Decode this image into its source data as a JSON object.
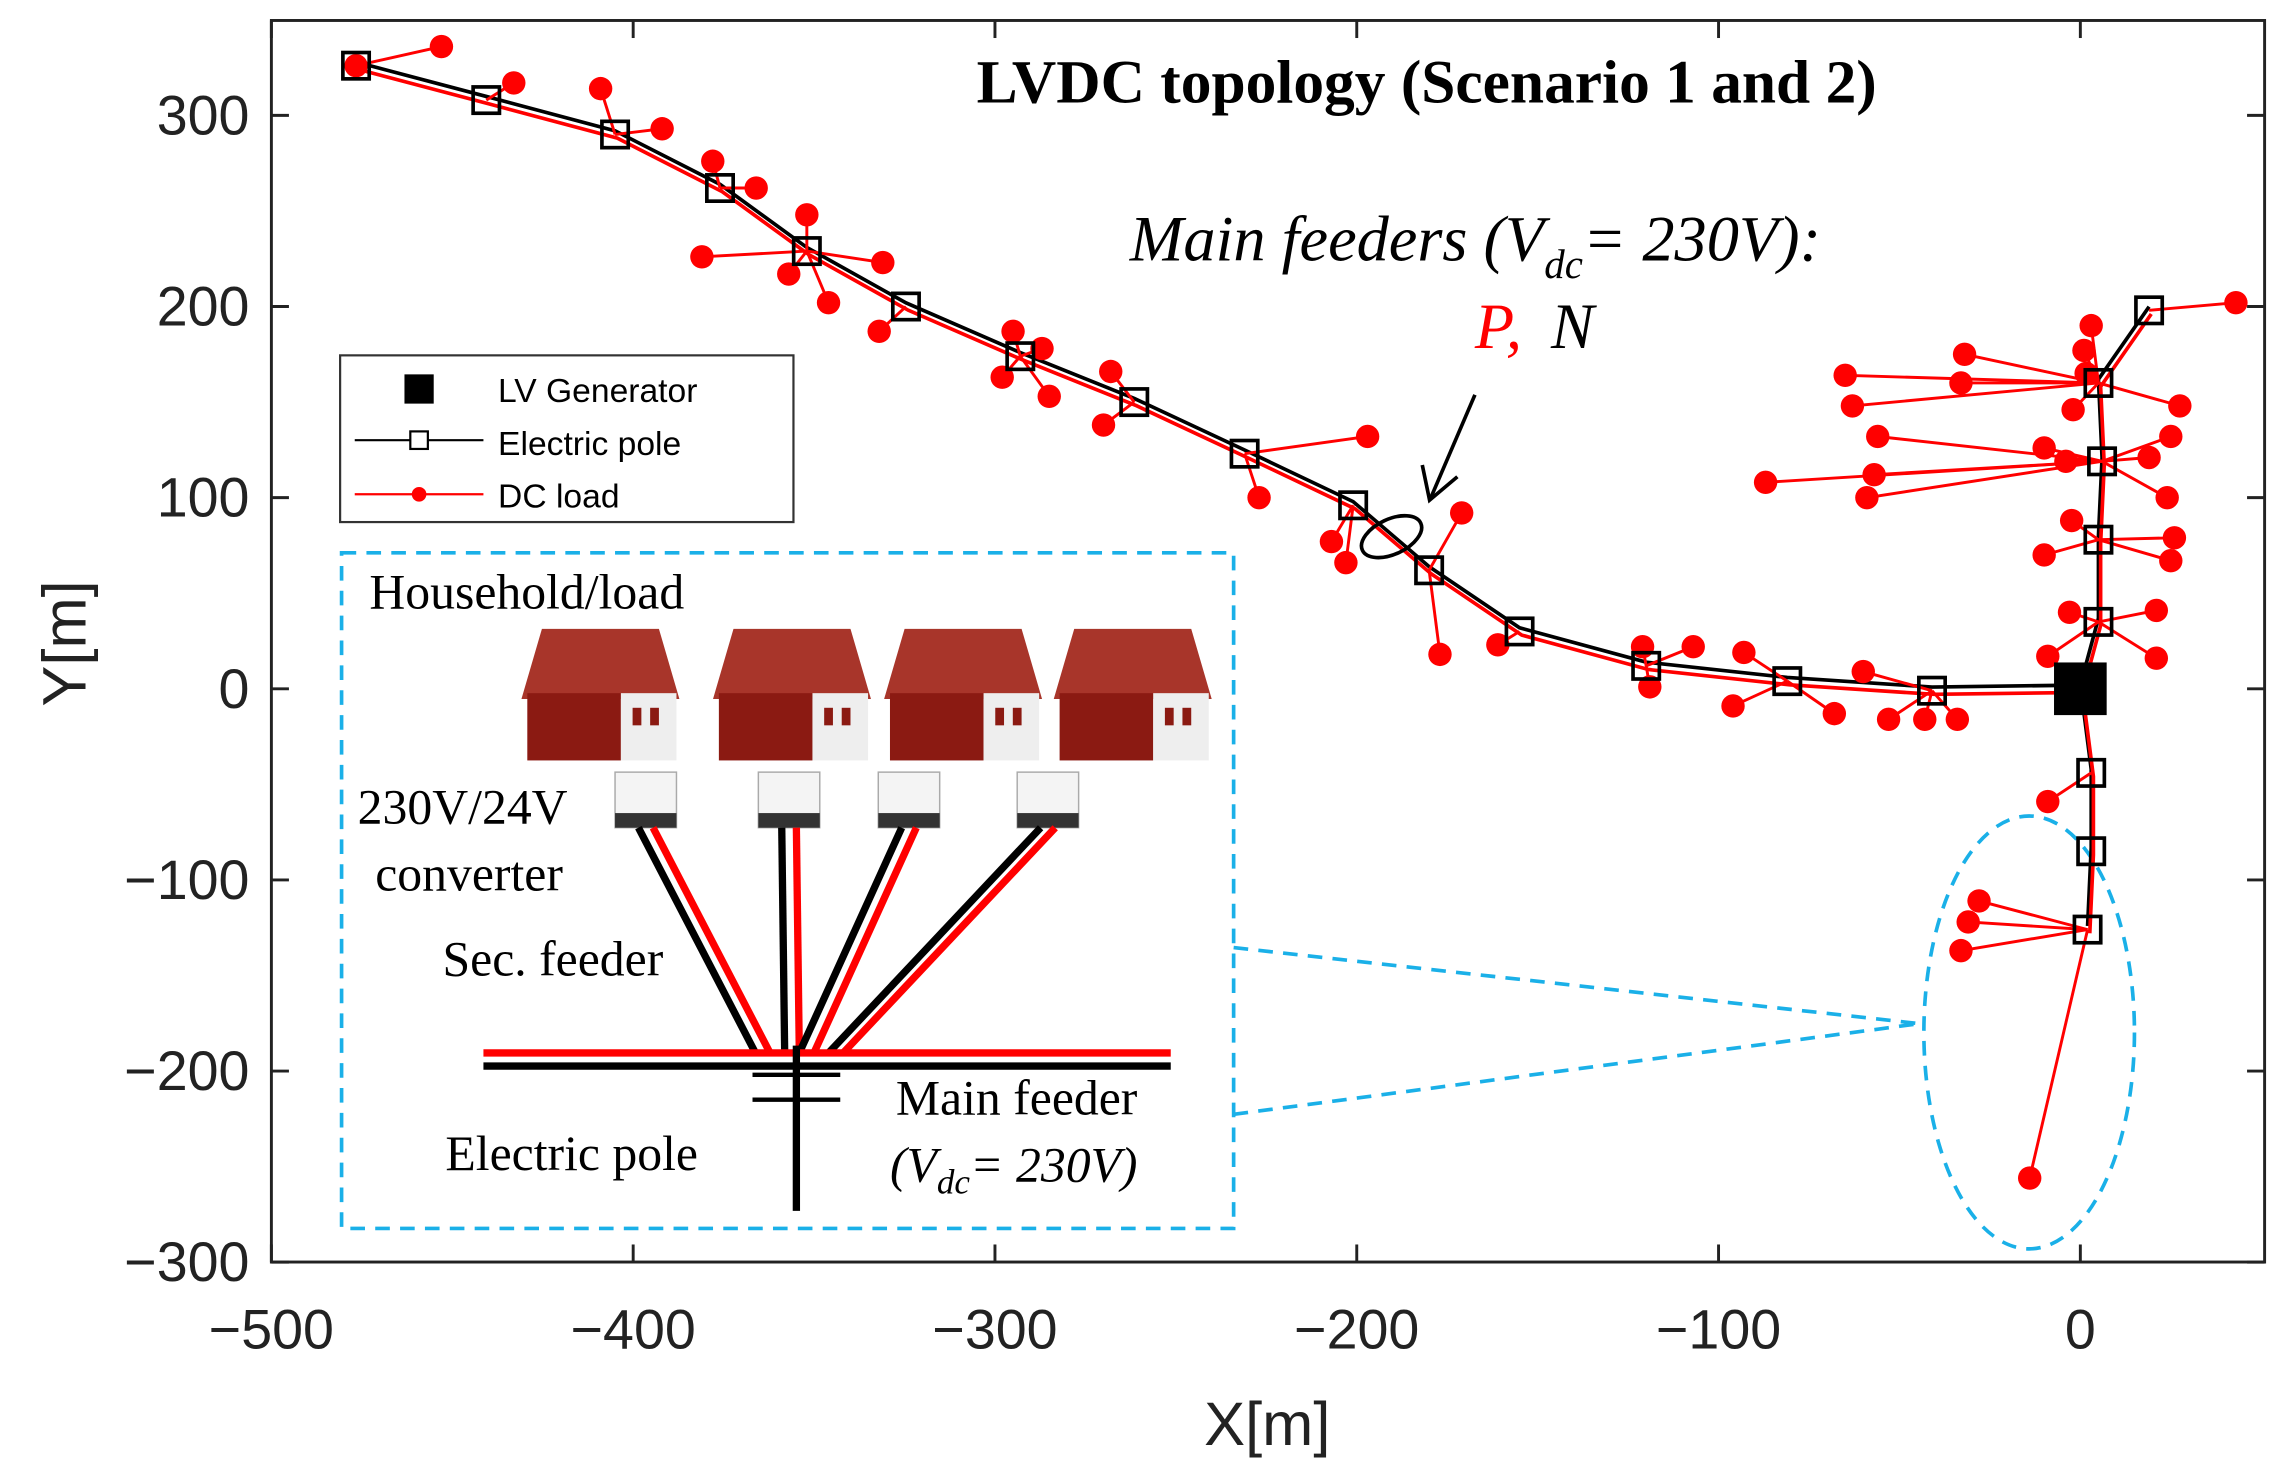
{
  "chart_data": {
    "type": "scatter",
    "title": "LVDC topology (Scenario 1 and 2)",
    "xlabel": "X[m]",
    "ylabel": "Y[m]",
    "xlim": [
      -500,
      51
    ],
    "ylim": [
      -300,
      350
    ],
    "xticks": [
      -500,
      -400,
      -300,
      -200,
      -100,
      0
    ],
    "xtick_labels": [
      "−500",
      "−400",
      "−300",
      "−200",
      "−100",
      "0"
    ],
    "yticks": [
      -300,
      -200,
      -100,
      0,
      100,
      200,
      300
    ],
    "ytick_labels": [
      "−300",
      "−200",
      "−100",
      "0",
      "100",
      "200",
      "300"
    ],
    "legend": {
      "placement": "upper-left",
      "entries": [
        "LV Generator",
        "Electric pole",
        "DC load"
      ]
    },
    "colors": {
      "feeder": "#000000",
      "load": "#ff0000",
      "inset": "#1ab0e8"
    },
    "generator": [
      0,
      0
    ],
    "feeders": [
      {
        "name": "west",
        "poles": [
          [
            -41,
            -1
          ],
          [
            -81,
            4
          ],
          [
            -120,
            12
          ],
          [
            -155,
            30
          ],
          [
            -180,
            62
          ],
          [
            -201,
            96
          ],
          [
            -231,
            123
          ],
          [
            -261.5,
            150
          ],
          [
            -293,
            174
          ],
          [
            -324.6,
            200
          ],
          [
            -352,
            229
          ],
          [
            -376,
            262
          ],
          [
            -405,
            290
          ],
          [
            -440.6,
            308
          ],
          [
            -476.6,
            326
          ]
        ]
      },
      {
        "name": "north",
        "poles": [
          [
            5,
            35
          ],
          [
            5,
            78
          ],
          [
            6,
            119
          ],
          [
            5,
            160
          ],
          [
            19,
            198
          ]
        ]
      },
      {
        "name": "south",
        "poles": [
          [
            3,
            -44
          ],
          [
            3,
            -85
          ],
          [
            2,
            -126
          ]
        ]
      }
    ],
    "loads": [
      {
        "pole": [
          -476.6,
          326
        ],
        "pts": [
          [
            -453,
            336
          ],
          [
            -476.6,
            326
          ]
        ]
      },
      {
        "pole": [
          -440.6,
          308
        ],
        "pts": [
          [
            -433,
            317
          ]
        ]
      },
      {
        "pole": [
          -405,
          290
        ],
        "pts": [
          [
            -409,
            314
          ],
          [
            -392,
            293
          ]
        ]
      },
      {
        "pole": [
          -376,
          262
        ],
        "pts": [
          [
            -378,
            276
          ],
          [
            -366,
            262
          ]
        ]
      },
      {
        "pole": [
          -352,
          229
        ],
        "pts": [
          [
            -352,
            248
          ],
          [
            -381,
            226
          ],
          [
            -357,
            217
          ],
          [
            -331,
            223
          ],
          [
            -346,
            202
          ]
        ]
      },
      {
        "pole": [
          -324.6,
          200
        ],
        "pts": [
          [
            -332,
            187
          ]
        ]
      },
      {
        "pole": [
          -293,
          174
        ],
        "pts": [
          [
            -295,
            187
          ],
          [
            -287,
            178
          ],
          [
            -298,
            163
          ],
          [
            -285,
            153
          ]
        ]
      },
      {
        "pole": [
          -261.5,
          150
        ],
        "pts": [
          [
            -268,
            166
          ],
          [
            -270,
            138
          ]
        ]
      },
      {
        "pole": [
          -231,
          123
        ],
        "pts": [
          [
            -197,
            132
          ],
          [
            -227,
            100
          ]
        ]
      },
      {
        "pole": [
          -201,
          96
        ],
        "pts": [
          [
            -207,
            77
          ],
          [
            -203,
            66
          ]
        ]
      },
      {
        "pole": [
          -180,
          62
        ],
        "pts": [
          [
            -171,
            92
          ],
          [
            -177,
            18
          ]
        ]
      },
      {
        "pole": [
          -155,
          30
        ],
        "pts": [
          [
            -161,
            23
          ]
        ]
      },
      {
        "pole": [
          -120,
          12
        ],
        "pts": [
          [
            -121,
            22
          ],
          [
            -107,
            22
          ],
          [
            -119,
            1
          ]
        ]
      },
      {
        "pole": [
          -81,
          4
        ],
        "pts": [
          [
            -93,
            19
          ],
          [
            -96,
            -9
          ],
          [
            -68,
            -13
          ]
        ]
      },
      {
        "pole": [
          -41,
          -1
        ],
        "pts": [
          [
            -60,
            9
          ],
          [
            -53,
            -16
          ],
          [
            -43,
            -16
          ],
          [
            -34,
            -16
          ]
        ]
      },
      {
        "pole": [
          5,
          35
        ],
        "pts": [
          [
            -3,
            40
          ],
          [
            21,
            41
          ],
          [
            -9,
            17
          ],
          [
            21,
            16
          ]
        ]
      },
      {
        "pole": [
          5,
          78
        ],
        "pts": [
          [
            -2.4,
            88
          ],
          [
            26,
            79
          ],
          [
            25,
            67
          ],
          [
            -10,
            70
          ]
        ]
      },
      {
        "pole": [
          6,
          119
        ],
        "pts": [
          [
            -87,
            108
          ],
          [
            -57,
            112
          ],
          [
            -59,
            100
          ],
          [
            -10,
            126
          ],
          [
            19,
            121
          ],
          [
            25,
            132
          ],
          [
            24,
            100
          ],
          [
            -56,
            132
          ],
          [
            -4,
            119
          ]
        ]
      },
      {
        "pole": [
          5,
          160
        ],
        "pts": [
          [
            -65,
            164
          ],
          [
            -63,
            148
          ],
          [
            -32,
            175
          ],
          [
            -33,
            160
          ],
          [
            1,
            177
          ],
          [
            1.6,
            165
          ],
          [
            27.5,
            148
          ],
          [
            -2,
            146
          ],
          [
            3,
            190
          ]
        ]
      },
      {
        "pole": [
          19,
          198
        ],
        "pts": [
          [
            43,
            202
          ]
        ]
      },
      {
        "pole": [
          3,
          -44
        ],
        "pts": [
          [
            -9,
            -59
          ]
        ]
      },
      {
        "pole": [
          2,
          -126
        ],
        "pts": [
          [
            -28,
            -111
          ],
          [
            -31,
            -122
          ],
          [
            -33,
            -137
          ],
          [
            -14,
            -256
          ]
        ]
      }
    ],
    "annotations": {
      "main_feeders_a": "Main feeders (V",
      "main_feeders_sub": "dc",
      "main_feeders_b": "= 230V):",
      "p_label": "P,",
      "n_label": "N"
    },
    "inset": {
      "household": "Household/load",
      "converter_1": "230V/24V",
      "converter_2": "converter",
      "sec_feeder": "Sec. feeder",
      "electric_pole": "Electric pole",
      "main_feeder": "Main feeder",
      "main_feeder_v_a": "(V",
      "main_feeder_v_sub": "dc",
      "main_feeder_v_b": "= 230V)"
    }
  }
}
